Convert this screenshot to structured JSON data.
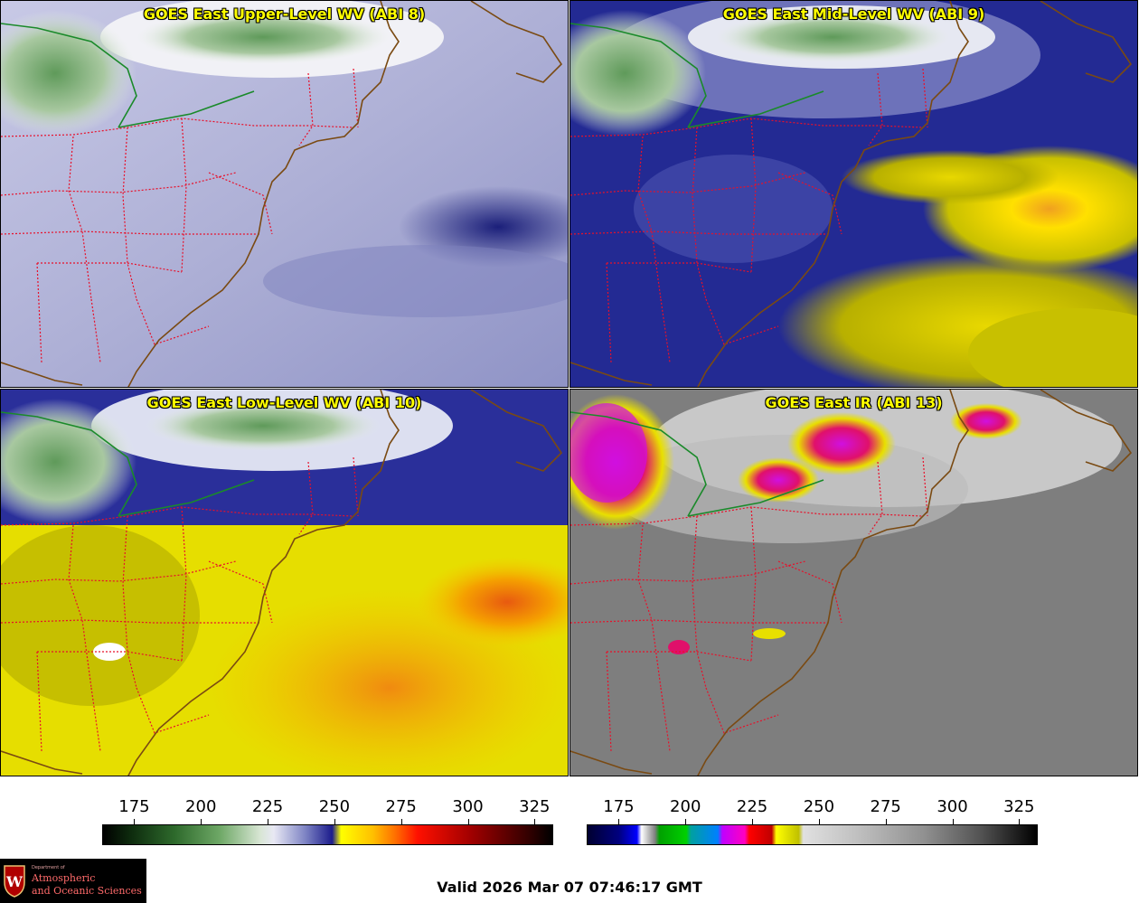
{
  "panels": [
    {
      "title": "GOES East Upper-Level WV (ABI 8)",
      "scheme": "wv_upper"
    },
    {
      "title": "GOES East Mid-Level WV (ABI 9)",
      "scheme": "wv_mid"
    },
    {
      "title": "GOES East Low-Level WV (ABI 10)",
      "scheme": "wv_low"
    },
    {
      "title": "GOES East IR (ABI 13)",
      "scheme": "ir"
    }
  ],
  "colorbars": {
    "wv": {
      "ticks": [
        "175",
        "200",
        "225",
        "250",
        "275",
        "300",
        "325"
      ],
      "range": [
        163,
        332
      ]
    },
    "ir": {
      "ticks": [
        "175",
        "200",
        "225",
        "250",
        "275",
        "300",
        "325"
      ],
      "range": [
        163,
        332
      ]
    }
  },
  "valid_time": "Valid 2026 Mar 07 07:46:17 GMT",
  "logo": {
    "dept": "Department of",
    "line1": "Atmospheric",
    "line2": "and Oceanic Sciences",
    "letter": "W"
  },
  "colors": {
    "state_borders": "#e8102a",
    "coastline": "#7a4a12",
    "us_canada_border": "#1a8a2a",
    "title": "#ffff00"
  }
}
